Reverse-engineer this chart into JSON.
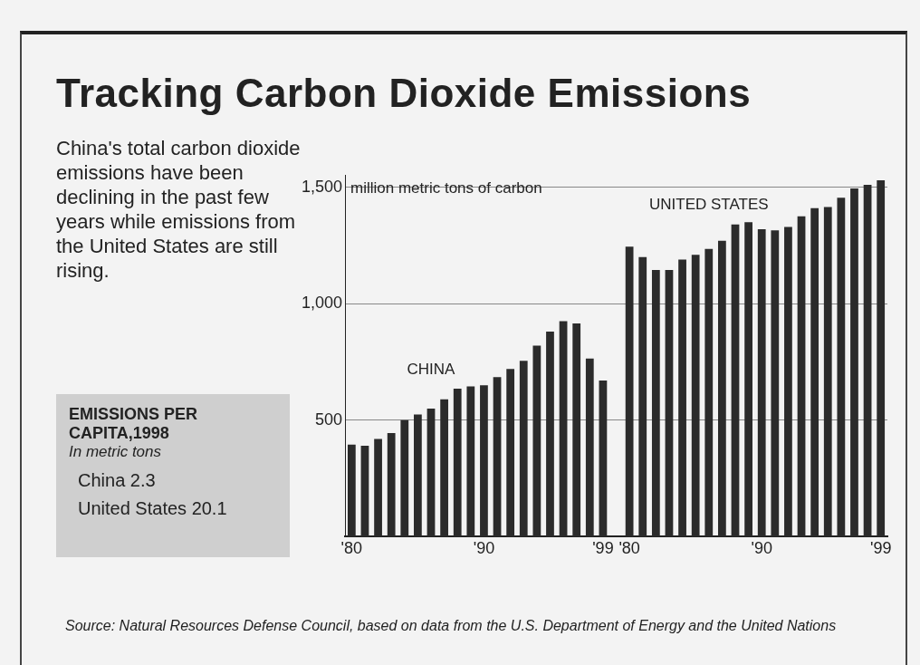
{
  "chart_data": {
    "type": "bar",
    "title": "Tracking Carbon Dioxide Emissions",
    "subtitle": "China's total carbon dioxide emissions have been declining in the past few years while emissions from the United States are still rising.",
    "ylabel": "million metric tons of carbon",
    "categories": [
      "'80",
      null,
      null,
      null,
      null,
      null,
      null,
      null,
      null,
      null,
      "'90",
      null,
      null,
      null,
      null,
      null,
      null,
      null,
      null,
      "'99",
      null,
      "'80",
      null,
      null,
      null,
      null,
      null,
      null,
      null,
      null,
      null,
      "'90",
      null,
      null,
      null,
      null,
      null,
      null,
      null,
      null,
      "'99"
    ],
    "series": [
      {
        "name": "CHINA",
        "color": "#2b2b2b",
        "values": [
          395,
          390,
          420,
          445,
          500,
          525,
          550,
          590,
          635,
          645,
          650,
          685,
          720,
          755,
          820,
          880,
          925,
          915,
          765,
          670,
          null,
          null,
          null,
          null,
          null,
          null,
          null,
          null,
          null,
          null,
          null,
          null,
          null,
          null,
          null,
          null,
          null,
          null,
          null,
          null,
          null
        ]
      },
      {
        "name": "UNITED STATES",
        "color": "#2b2b2b",
        "values": [
          null,
          null,
          null,
          null,
          null,
          null,
          null,
          null,
          null,
          null,
          null,
          null,
          null,
          null,
          null,
          null,
          null,
          null,
          null,
          null,
          null,
          1245,
          1200,
          1145,
          1145,
          1190,
          1210,
          1235,
          1270,
          1340,
          1350,
          1320,
          1315,
          1330,
          1375,
          1410,
          1415,
          1455,
          1495,
          1510,
          1530
        ]
      }
    ],
    "ylim": [
      0,
      1550
    ],
    "yticks": [
      {
        "value": 500,
        "label": "500"
      },
      {
        "value": 1000,
        "label": "1,000"
      },
      {
        "value": 1500,
        "label": "1,500"
      }
    ],
    "grid": "y",
    "legend": false,
    "annotations": [
      "EMISSIONS PER CAPITA,1998",
      "In metric tons",
      "China 2.3",
      "United States 20.1",
      "Source: Natural Resources Defense Council, based on data from the U.S. Department of Energy and the United Nations"
    ]
  }
}
